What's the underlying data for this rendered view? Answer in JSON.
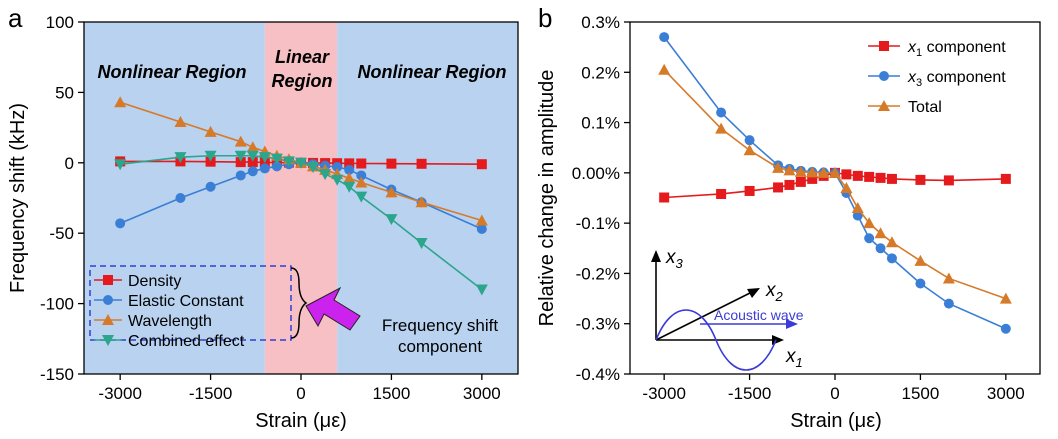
{
  "colors": {
    "red": "#e41a1c",
    "blue": "#3a7fd5",
    "orange": "#d67a2a",
    "green": "#2ca58d",
    "region_blue": "#b8d2f0",
    "region_pink": "#f6c0c4",
    "legend_dash": "#2f3fd6",
    "arrow": "#cc22ee",
    "wave": "#3b3bd6"
  },
  "chart_data": [
    {
      "type": "line",
      "panel_label": "a",
      "xlabel": "Strain (με)",
      "ylabel": "Frequency shift (kHz)",
      "xlim": [
        -3600,
        3600
      ],
      "ylim": [
        -150,
        100
      ],
      "xticks": [
        -3000,
        -1500,
        0,
        1500,
        3000
      ],
      "xtick_labels": [
        "-3000",
        "-1500",
        "0",
        "1500",
        "3000"
      ],
      "yticks": [
        -150,
        -100,
        -50,
        0,
        50,
        100
      ],
      "ytick_labels": [
        "-150",
        "-100",
        "-50",
        "0",
        "50",
        "100"
      ],
      "grid": false,
      "regions": [
        {
          "label": "Nonlinear Region",
          "x": [
            -3600,
            -600
          ],
          "color": "region_blue"
        },
        {
          "label": "Linear Region",
          "x": [
            -600,
            600
          ],
          "color": "region_pink"
        },
        {
          "label": "Nonlinear Region",
          "x": [
            600,
            3600
          ],
          "color": "region_blue"
        }
      ],
      "legend_position": "bottom-left",
      "series": [
        {
          "name": "Density",
          "marker": "square",
          "color": "red",
          "x": [
            -3000,
            -2000,
            -1500,
            -1000,
            -800,
            -600,
            -400,
            -200,
            0,
            200,
            400,
            600,
            800,
            1000,
            1500,
            2000,
            3000
          ],
          "y": [
            1,
            1,
            0.8,
            0.5,
            0.5,
            0.3,
            0.2,
            0.1,
            0,
            -0.1,
            -0.2,
            -0.3,
            -0.4,
            -0.5,
            -0.6,
            -0.7,
            -1
          ]
        },
        {
          "name": "Elastic Constant",
          "marker": "circle",
          "color": "blue",
          "x": [
            -3000,
            -2000,
            -1500,
            -1000,
            -800,
            -600,
            -400,
            -200,
            0,
            200,
            400,
            600,
            800,
            1000,
            1500,
            2000,
            3000
          ],
          "y": [
            -43,
            -25,
            -17,
            -9,
            -6,
            -4,
            -2.5,
            -1,
            0,
            -1,
            -2,
            -3,
            -5,
            -9,
            -19,
            -28,
            -47
          ]
        },
        {
          "name": "Wavelength",
          "marker": "triangle-up",
          "color": "orange",
          "x": [
            -3000,
            -2000,
            -1500,
            -1000,
            -800,
            -600,
            -400,
            -200,
            0,
            200,
            400,
            600,
            800,
            1000,
            1500,
            2000,
            3000
          ],
          "y": [
            43,
            29,
            22,
            15,
            11,
            8,
            5,
            2.5,
            0,
            -2.5,
            -5,
            -8,
            -11,
            -14,
            -21,
            -28,
            -41
          ]
        },
        {
          "name": "Combined effect",
          "marker": "triangle-down",
          "color": "green",
          "x": [
            -3000,
            -2000,
            -1500,
            -1000,
            -800,
            -600,
            -400,
            -200,
            0,
            200,
            400,
            600,
            800,
            1000,
            1500,
            2000,
            3000
          ],
          "y": [
            -1,
            4,
            5,
            5,
            5,
            4,
            3,
            1,
            0,
            -3,
            -8,
            -12,
            -17,
            -24,
            -40,
            -57,
            -90
          ]
        }
      ],
      "annotations": [
        "Frequency shift",
        "component"
      ]
    },
    {
      "type": "line",
      "panel_label": "b",
      "xlabel": "Strain (με)",
      "ylabel": "Relative change in amplitude",
      "xlim": [
        -3600,
        3600
      ],
      "ylim": [
        -0.4,
        0.3
      ],
      "xticks": [
        -3000,
        -1500,
        0,
        1500,
        3000
      ],
      "xtick_labels": [
        "-3000",
        "-1500",
        "0",
        "1500",
        "3000"
      ],
      "yticks": [
        -0.4,
        -0.3,
        -0.2,
        -0.1,
        0.0,
        0.1,
        0.2,
        0.3
      ],
      "ytick_labels": [
        "-0.4%",
        "-0.3%",
        "-0.2%",
        "-0.1%",
        "0.00%",
        "0.1%",
        "0.2%",
        "0.3%"
      ],
      "grid": false,
      "legend_position": "top-right",
      "series": [
        {
          "name": "component",
          "subscript_var": "x",
          "subscript": "1",
          "marker": "square",
          "color": "red",
          "x": [
            -3000,
            -2000,
            -1500,
            -1000,
            -800,
            -600,
            -400,
            -200,
            0,
            200,
            400,
            600,
            800,
            1000,
            1500,
            2000,
            3000
          ],
          "y": [
            -0.049,
            -0.042,
            -0.036,
            -0.029,
            -0.024,
            -0.018,
            -0.012,
            -0.006,
            0,
            -0.003,
            -0.006,
            -0.008,
            -0.01,
            -0.012,
            -0.014,
            -0.015,
            -0.012
          ]
        },
        {
          "name": "component",
          "subscript_var": "x",
          "subscript": "3",
          "marker": "circle",
          "color": "blue",
          "x": [
            -3000,
            -2000,
            -1500,
            -1000,
            -800,
            -600,
            -400,
            -200,
            0,
            200,
            400,
            600,
            800,
            1000,
            1500,
            2000,
            3000
          ],
          "y": [
            0.27,
            0.12,
            0.065,
            0.015,
            0.008,
            0.004,
            0.002,
            0.001,
            0,
            -0.04,
            -0.085,
            -0.13,
            -0.15,
            -0.17,
            -0.22,
            -0.26,
            -0.31
          ]
        },
        {
          "name": "Total",
          "marker": "triangle-up",
          "color": "orange",
          "x": [
            -3000,
            -2000,
            -1500,
            -1000,
            -800,
            -600,
            -400,
            -200,
            0,
            200,
            400,
            600,
            800,
            1000,
            1500,
            2000,
            3000
          ],
          "y": [
            0.205,
            0.088,
            0.045,
            0.01,
            0.005,
            0.002,
            0.001,
            0,
            0,
            -0.03,
            -0.07,
            -0.1,
            -0.12,
            -0.138,
            -0.175,
            -0.21,
            -0.25
          ]
        }
      ],
      "inset": {
        "labels": [
          "x",
          "3",
          "x",
          "2",
          "x",
          "1"
        ],
        "wave_label": "Acoustic wave"
      }
    }
  ]
}
